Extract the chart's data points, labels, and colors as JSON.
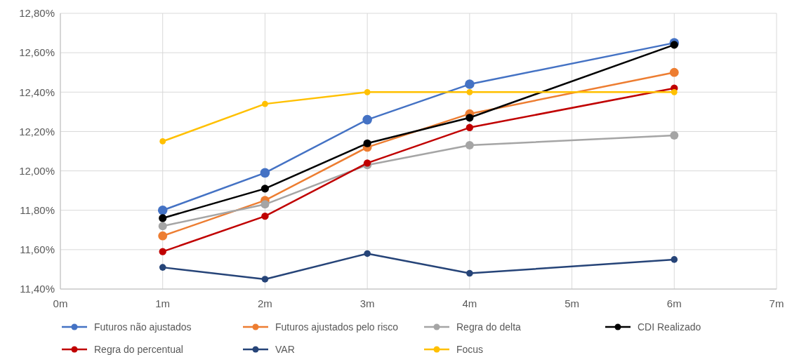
{
  "chart_data": {
    "type": "line",
    "x": [
      1,
      2,
      3,
      4,
      6
    ],
    "xlim": [
      0,
      7
    ],
    "xticks": [
      {
        "value": 0,
        "label": "0m"
      },
      {
        "value": 1,
        "label": "1m"
      },
      {
        "value": 2,
        "label": "2m"
      },
      {
        "value": 3,
        "label": "3m"
      },
      {
        "value": 4,
        "label": "4m"
      },
      {
        "value": 5,
        "label": "5m"
      },
      {
        "value": 6,
        "label": "6m"
      },
      {
        "value": 7,
        "label": "7m"
      }
    ],
    "ylim": [
      11.4,
      12.8
    ],
    "yticks": [
      {
        "value": 11.4,
        "label": "11,40%"
      },
      {
        "value": 11.6,
        "label": "11,60%"
      },
      {
        "value": 11.8,
        "label": "11,80%"
      },
      {
        "value": 12.0,
        "label": "12,00%"
      },
      {
        "value": 12.2,
        "label": "12,20%"
      },
      {
        "value": 12.4,
        "label": "12,40%"
      },
      {
        "value": 12.6,
        "label": "12,60%"
      },
      {
        "value": 12.8,
        "label": "12,80%"
      }
    ],
    "grid": true,
    "legend": "bottom",
    "marker": "circle",
    "line_style": "solid",
    "series": [
      {
        "name": "Futuros não ajustados",
        "color": "#4472c4",
        "values": [
          11.8,
          11.99,
          12.26,
          12.44,
          12.65
        ]
      },
      {
        "name": "Futuros ajustados pelo risco",
        "color": "#ed7d31",
        "values": [
          11.67,
          11.85,
          12.12,
          12.29,
          12.5
        ]
      },
      {
        "name": "Regra do delta",
        "color": "#a5a5a5",
        "values": [
          11.72,
          11.83,
          12.03,
          12.13,
          12.18
        ]
      },
      {
        "name": "CDI Realizado",
        "color": "#000000",
        "values": [
          11.76,
          11.91,
          12.14,
          12.27,
          12.64
        ]
      },
      {
        "name": "Regra do percentual",
        "color": "#c00000",
        "values": [
          11.59,
          11.77,
          12.04,
          12.22,
          12.42
        ]
      },
      {
        "name": "VAR",
        "color": "#264478",
        "values": [
          11.51,
          11.45,
          11.58,
          11.48,
          11.55
        ]
      },
      {
        "name": "Focus",
        "color": "#ffc000",
        "values": [
          12.15,
          12.34,
          12.4,
          12.4,
          12.4
        ]
      }
    ]
  }
}
